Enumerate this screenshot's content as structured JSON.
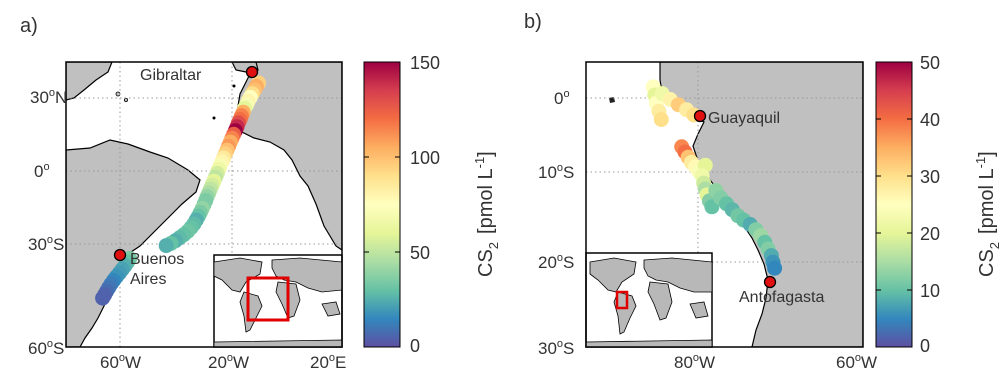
{
  "panels": [
    {
      "label": "a)",
      "lat_ticks": [
        {
          "deg": "30",
          "sup": "o",
          "hem": "N"
        },
        {
          "deg": "0",
          "sup": "o",
          "hem": ""
        },
        {
          "deg": "30",
          "sup": "o",
          "hem": "S"
        },
        {
          "deg": "60",
          "sup": "o",
          "hem": "S"
        }
      ],
      "lon_ticks": [
        {
          "deg": "60",
          "sup": "o",
          "hem": "W"
        },
        {
          "deg": "20",
          "sup": "o",
          "hem": "W"
        },
        {
          "deg": "20",
          "sup": "o",
          "hem": "E"
        }
      ],
      "cities": [
        "Gibraltar",
        "Buenos",
        "Aires"
      ],
      "colorbar": {
        "ticks": [
          "150",
          "100",
          "50",
          "0"
        ],
        "max": 150
      },
      "ylabel": {
        "main": "CS",
        "sub": "2",
        "unit": "[pmol L",
        "sup": "-1",
        "close": "]"
      }
    },
    {
      "label": "b)",
      "lat_ticks": [
        {
          "deg": "0",
          "sup": "o",
          "hem": ""
        },
        {
          "deg": "10",
          "sup": "o",
          "hem": "S"
        },
        {
          "deg": "20",
          "sup": "o",
          "hem": "S"
        },
        {
          "deg": "30",
          "sup": "o",
          "hem": "S"
        }
      ],
      "lon_ticks": [
        {
          "deg": "80",
          "sup": "o",
          "hem": "W"
        },
        {
          "deg": "60",
          "sup": "o",
          "hem": "W"
        }
      ],
      "cities": [
        "Guayaquil",
        "Antofagasta"
      ],
      "colorbar": {
        "ticks": [
          "50",
          "40",
          "30",
          "20",
          "10",
          "0"
        ],
        "max": 50
      },
      "ylabel": {
        "main": "CS",
        "sub": "2",
        "unit": "[pmol L",
        "sup": "-1",
        "close": "]"
      }
    }
  ],
  "colors": {
    "land": "#c0c0c0",
    "ocean": "#ffffff",
    "highlight_box": "#e00000",
    "city_marker": "#e01010"
  },
  "cruise_a": [
    {
      "lat": 36.2,
      "lon": -10.5,
      "v": 95
    },
    {
      "lat": 34.8,
      "lon": -11.3,
      "v": 105
    },
    {
      "lat": 33.3,
      "lon": -12.0,
      "v": 100
    },
    {
      "lat": 31.8,
      "lon": -12.8,
      "v": 90
    },
    {
      "lat": 30.3,
      "lon": -13.5,
      "v": 75
    },
    {
      "lat": 28.8,
      "lon": -14.2,
      "v": 80
    },
    {
      "lat": 27.3,
      "lon": -14.8,
      "v": 70
    },
    {
      "lat": 25.8,
      "lon": -15.5,
      "v": 60
    },
    {
      "lat": 24.2,
      "lon": -16.0,
      "v": 105
    },
    {
      "lat": 22.7,
      "lon": -16.6,
      "v": 115
    },
    {
      "lat": 21.2,
      "lon": -17.1,
      "v": 120
    },
    {
      "lat": 19.8,
      "lon": -17.7,
      "v": 130
    },
    {
      "lat": 18.2,
      "lon": -18.2,
      "v": 140
    },
    {
      "lat": 16.6,
      "lon": -18.8,
      "v": 150
    },
    {
      "lat": 15.1,
      "lon": -19.4,
      "v": 125
    },
    {
      "lat": 13.5,
      "lon": -20.0,
      "v": 115
    },
    {
      "lat": 11.9,
      "lon": -20.6,
      "v": 105
    },
    {
      "lat": 10.2,
      "lon": -21.2,
      "v": 110
    },
    {
      "lat": 8.6,
      "lon": -21.8,
      "v": 100
    },
    {
      "lat": 7.0,
      "lon": -22.4,
      "v": 95
    },
    {
      "lat": 5.4,
      "lon": -23.0,
      "v": 85
    },
    {
      "lat": 3.8,
      "lon": -23.6,
      "v": 80
    },
    {
      "lat": 2.2,
      "lon": -24.2,
      "v": 70
    },
    {
      "lat": 0.6,
      "lon": -24.8,
      "v": 65
    },
    {
      "lat": -1.0,
      "lon": -25.3,
      "v": 55
    },
    {
      "lat": -2.6,
      "lon": -25.9,
      "v": 50
    },
    {
      "lat": -4.2,
      "lon": -26.5,
      "v": 60
    },
    {
      "lat": -5.8,
      "lon": -27.1,
      "v": 55
    },
    {
      "lat": -7.4,
      "lon": -27.7,
      "v": 50
    },
    {
      "lat": -9.0,
      "lon": -28.3,
      "v": 45
    },
    {
      "lat": -10.6,
      "lon": -28.9,
      "v": 40
    },
    {
      "lat": -12.2,
      "lon": -29.4,
      "v": 35
    },
    {
      "lat": -13.8,
      "lon": -30.0,
      "v": 35
    },
    {
      "lat": -15.4,
      "lon": -30.6,
      "v": 40
    },
    {
      "lat": -17.0,
      "lon": -31.3,
      "v": 35
    },
    {
      "lat": -18.6,
      "lon": -32.0,
      "v": 30
    },
    {
      "lat": -20.2,
      "lon": -32.8,
      "v": 25
    },
    {
      "lat": -21.8,
      "lon": -33.6,
      "v": 28
    },
    {
      "lat": -23.3,
      "lon": -34.6,
      "v": 30
    },
    {
      "lat": -24.8,
      "lon": -35.8,
      "v": 32
    },
    {
      "lat": -26.2,
      "lon": -37.2,
      "v": 30
    },
    {
      "lat": -27.5,
      "lon": -38.7,
      "v": 28
    },
    {
      "lat": -28.7,
      "lon": -40.2,
      "v": 25
    },
    {
      "lat": -29.8,
      "lon": -41.8,
      "v": 30
    },
    {
      "lat": -30.7,
      "lon": -43.5,
      "v": 25
    },
    {
      "lat": -36.0,
      "lon": -56.5,
      "v": 35
    },
    {
      "lat": -37.5,
      "lon": -57.3,
      "v": 30
    },
    {
      "lat": -39.0,
      "lon": -58.2,
      "v": 25
    },
    {
      "lat": -40.5,
      "lon": -59.2,
      "v": 22
    },
    {
      "lat": -42.0,
      "lon": -60.2,
      "v": 20
    },
    {
      "lat": -43.5,
      "lon": -61.3,
      "v": 18
    },
    {
      "lat": -45.0,
      "lon": -62.3,
      "v": 15
    },
    {
      "lat": -46.5,
      "lon": -63.2,
      "v": 12
    },
    {
      "lat": -48.0,
      "lon": -64.0,
      "v": 10
    },
    {
      "lat": -49.5,
      "lon": -64.8,
      "v": 8
    },
    {
      "lat": -51.0,
      "lon": -65.5,
      "v": 5
    },
    {
      "lat": -52.3,
      "lon": -66.2,
      "v": 5
    }
  ],
  "cruise_b": [
    {
      "lat": 1.5,
      "lon": -85.5,
      "v": 25
    },
    {
      "lat": 0.4,
      "lon": -85.3,
      "v": 20
    },
    {
      "lat": -0.7,
      "lon": -85.1,
      "v": 25
    },
    {
      "lat": -1.8,
      "lon": -84.8,
      "v": 28
    },
    {
      "lat": -2.9,
      "lon": -84.5,
      "v": 30
    },
    {
      "lat": 0.6,
      "lon": -84.4,
      "v": 22
    },
    {
      "lat": -0.2,
      "lon": -83.4,
      "v": 27
    },
    {
      "lat": -0.9,
      "lon": -82.4,
      "v": 32
    },
    {
      "lat": -1.6,
      "lon": -81.4,
      "v": 28
    },
    {
      "lat": -2.3,
      "lon": -80.5,
      "v": 30
    },
    {
      "lat": -6.6,
      "lon": -82.0,
      "v": 38
    },
    {
      "lat": -7.3,
      "lon": -81.6,
      "v": 40
    },
    {
      "lat": -8.0,
      "lon": -81.2,
      "v": 33
    },
    {
      "lat": -8.7,
      "lon": -80.8,
      "v": 28
    },
    {
      "lat": -9.3,
      "lon": -80.3,
      "v": 26
    },
    {
      "lat": -9.9,
      "lon": -79.9,
      "v": 24
    },
    {
      "lat": -9.1,
      "lon": -79.1,
      "v": 20
    },
    {
      "lat": -10.5,
      "lon": -79.5,
      "v": 22
    },
    {
      "lat": -11.5,
      "lon": -79.3,
      "v": 18
    },
    {
      "lat": -12.3,
      "lon": -79.1,
      "v": 15
    },
    {
      "lat": -13.1,
      "lon": -78.9,
      "v": 20
    },
    {
      "lat": -13.9,
      "lon": -78.6,
      "v": 12
    },
    {
      "lat": -14.7,
      "lon": -78.3,
      "v": 10
    },
    {
      "lat": -12.5,
      "lon": -77.8,
      "v": 13
    },
    {
      "lat": -13.5,
      "lon": -77.2,
      "v": 12
    },
    {
      "lat": -14.3,
      "lon": -76.5,
      "v": 10
    },
    {
      "lat": -15.1,
      "lon": -75.8,
      "v": 9
    },
    {
      "lat": -15.9,
      "lon": -75.1,
      "v": 11
    },
    {
      "lat": -16.5,
      "lon": -74.4,
      "v": 10
    },
    {
      "lat": -17.1,
      "lon": -73.6,
      "v": 8
    },
    {
      "lat": -17.8,
      "lon": -72.9,
      "v": 12
    },
    {
      "lat": -18.6,
      "lon": -72.3,
      "v": 14
    },
    {
      "lat": -19.5,
      "lon": -71.8,
      "v": 10
    },
    {
      "lat": -20.4,
      "lon": -71.4,
      "v": 12
    },
    {
      "lat": -21.3,
      "lon": -71.0,
      "v": 8
    },
    {
      "lat": -22.2,
      "lon": -70.8,
      "v": 6
    },
    {
      "lat": -23.0,
      "lon": -70.6,
      "v": 5
    }
  ]
}
